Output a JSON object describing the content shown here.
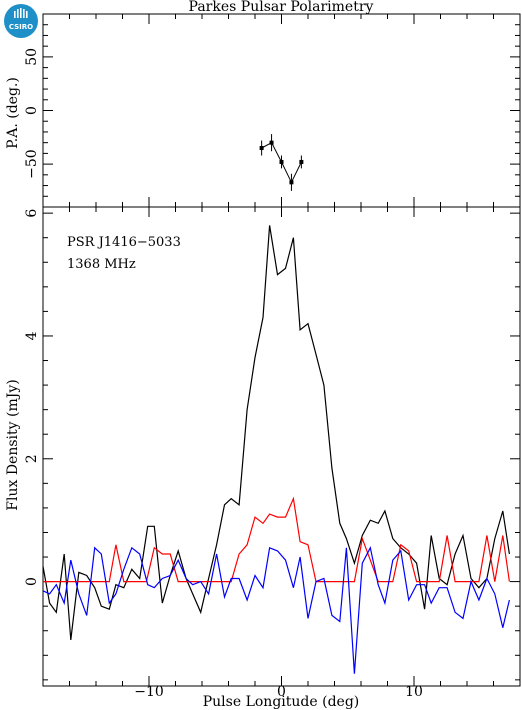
{
  "title": "Parkes Pulsar Polarimetry",
  "logo_text": "CSIRO",
  "colors": {
    "total_intensity": "#000000",
    "linear": "#ff0000",
    "circular": "#0000ff",
    "logo": "#1f8fc8"
  },
  "chart_data": [
    {
      "type": "scatter",
      "panel": "top",
      "title": "Parkes Pulsar Polarimetry",
      "xlabel": "",
      "ylabel": "P.A. (deg.)",
      "xlim": [
        -18,
        18
      ],
      "ylim": [
        -90,
        90
      ],
      "yticks": [
        -50,
        0,
        50
      ],
      "x": [
        -1.5,
        -0.75,
        0.0,
        0.75,
        1.5
      ],
      "y": [
        -35,
        -30,
        -48,
        -67,
        -48
      ],
      "yerr": [
        7,
        8,
        6,
        8,
        6
      ]
    },
    {
      "type": "line",
      "panel": "bottom",
      "xlabel": "Pulse Longitude (deg)",
      "ylabel": "Flux Density (mJy)",
      "xlim": [
        -18,
        18
      ],
      "ylim": [
        -1.7,
        6.1
      ],
      "xticks": [
        -10,
        0,
        10
      ],
      "yticks": [
        0,
        2,
        4,
        6
      ],
      "annotations": [
        "PSR J1416−5033",
        "1368 MHz"
      ],
      "series": [
        {
          "color": "#000000",
          "points": [
            [
              -18,
              0.25
            ],
            [
              -17.5,
              -0.35
            ],
            [
              -17,
              -0.5
            ],
            [
              -16.4,
              0.45
            ],
            [
              -15.9,
              -0.95
            ],
            [
              -15.3,
              0.15
            ],
            [
              -14.7,
              0.1
            ],
            [
              -14.1,
              -0.1
            ],
            [
              -13.6,
              -0.4
            ],
            [
              -13,
              -0.45
            ],
            [
              -12.5,
              -0.05
            ],
            [
              -11.9,
              -0.1
            ],
            [
              -11.3,
              0.2
            ],
            [
              -10.7,
              0.05
            ],
            [
              -10.1,
              0.9
            ],
            [
              -9.6,
              0.9
            ],
            [
              -9,
              -0.35
            ],
            [
              -8.4,
              0.1
            ],
            [
              -7.8,
              0.5
            ],
            [
              -7.2,
              0.05
            ],
            [
              -6.7,
              -0.2
            ],
            [
              -6.1,
              -0.5
            ],
            [
              -5.5,
              0.05
            ],
            [
              -4.9,
              0.6
            ],
            [
              -4.3,
              1.25
            ],
            [
              -3.8,
              1.35
            ],
            [
              -3.2,
              1.25
            ],
            [
              -2.6,
              2.8
            ],
            [
              -2.0,
              3.65
            ],
            [
              -1.4,
              4.3
            ],
            [
              -0.9,
              5.8
            ],
            [
              -0.3,
              5.0
            ],
            [
              0.3,
              5.1
            ],
            [
              0.9,
              5.6
            ],
            [
              1.4,
              4.1
            ],
            [
              2.0,
              4.2
            ],
            [
              2.6,
              3.7
            ],
            [
              3.2,
              3.2
            ],
            [
              3.8,
              1.85
            ],
            [
              4.4,
              0.95
            ],
            [
              4.9,
              0.7
            ],
            [
              5.5,
              0.3
            ],
            [
              6.1,
              0.75
            ],
            [
              6.7,
              1.0
            ],
            [
              7.3,
              0.95
            ],
            [
              7.8,
              1.15
            ],
            [
              8.4,
              0.7
            ],
            [
              9.0,
              0.55
            ],
            [
              9.6,
              0.45
            ],
            [
              10.2,
              0.3
            ],
            [
              10.8,
              -0.45
            ],
            [
              11.3,
              0.75
            ],
            [
              11.9,
              0.05
            ],
            [
              12.5,
              -0.05
            ],
            [
              13.1,
              0.45
            ],
            [
              13.7,
              0.75
            ],
            [
              14.3,
              0.05
            ],
            [
              14.9,
              -0.1
            ],
            [
              15.5,
              0.05
            ],
            [
              16.1,
              0.7
            ],
            [
              16.7,
              1.15
            ],
            [
              17.2,
              0.45
            ]
          ]
        },
        {
          "color": "#ff0000",
          "points": [
            [
              -18,
              0.0
            ],
            [
              -13,
              0.0
            ],
            [
              -12.5,
              0.6
            ],
            [
              -11.9,
              0.0
            ],
            [
              -10.2,
              0.0
            ],
            [
              -9.6,
              0.55
            ],
            [
              -9,
              0.45
            ],
            [
              -8.4,
              0.45
            ],
            [
              -7.8,
              0.0
            ],
            [
              -3.8,
              0.0
            ],
            [
              -3.2,
              0.45
            ],
            [
              -2.6,
              0.6
            ],
            [
              -2.0,
              1.05
            ],
            [
              -1.4,
              0.95
            ],
            [
              -0.9,
              1.1
            ],
            [
              -0.3,
              1.05
            ],
            [
              0.3,
              1.05
            ],
            [
              0.9,
              1.35
            ],
            [
              1.4,
              0.65
            ],
            [
              2.0,
              0.6
            ],
            [
              2.6,
              0.0
            ],
            [
              5.5,
              0.0
            ],
            [
              6.1,
              0.7
            ],
            [
              6.7,
              0.35
            ],
            [
              7.3,
              0.0
            ],
            [
              8.4,
              0.0
            ],
            [
              9.0,
              0.6
            ],
            [
              9.6,
              0.5
            ],
            [
              10.2,
              0.0
            ],
            [
              11.9,
              0.0
            ],
            [
              12.5,
              0.75
            ],
            [
              13.1,
              0.0
            ],
            [
              14.9,
              0.0
            ],
            [
              15.5,
              0.75
            ],
            [
              16.1,
              0.0
            ],
            [
              16.7,
              0.75
            ],
            [
              17.2,
              0.0
            ]
          ]
        },
        {
          "color": "#0000ff",
          "points": [
            [
              -18,
              -0.15
            ],
            [
              -17.5,
              -0.2
            ],
            [
              -17,
              -0.05
            ],
            [
              -16.4,
              -0.35
            ],
            [
              -15.9,
              0.35
            ],
            [
              -15.3,
              -0.2
            ],
            [
              -14.7,
              -0.55
            ],
            [
              -14.1,
              0.55
            ],
            [
              -13.6,
              0.45
            ],
            [
              -13,
              -0.35
            ],
            [
              -12.5,
              -0.2
            ],
            [
              -11.9,
              0.2
            ],
            [
              -11.3,
              0.55
            ],
            [
              -10.7,
              0.45
            ],
            [
              -10.1,
              -0.05
            ],
            [
              -9.6,
              -0.1
            ],
            [
              -9,
              0.05
            ],
            [
              -8.4,
              0.1
            ],
            [
              -7.8,
              0.35
            ],
            [
              -7.2,
              0.05
            ],
            [
              -6.7,
              -0.05
            ],
            [
              -6.1,
              0.0
            ],
            [
              -5.5,
              -0.2
            ],
            [
              -4.9,
              0.45
            ],
            [
              -4.3,
              -0.25
            ],
            [
              -3.8,
              0.05
            ],
            [
              -3.2,
              0.05
            ],
            [
              -2.6,
              -0.3
            ],
            [
              -2.0,
              0.1
            ],
            [
              -1.4,
              -0.1
            ],
            [
              -0.9,
              0.55
            ],
            [
              -0.3,
              0.5
            ],
            [
              0.3,
              0.35
            ],
            [
              0.9,
              -0.1
            ],
            [
              1.4,
              0.4
            ],
            [
              2.0,
              -0.6
            ],
            [
              2.6,
              0.0
            ],
            [
              3.2,
              0.05
            ],
            [
              3.8,
              -0.55
            ],
            [
              4.4,
              -0.65
            ],
            [
              4.9,
              0.55
            ],
            [
              5.5,
              -1.5
            ],
            [
              6.1,
              0.3
            ],
            [
              6.7,
              0.55
            ],
            [
              7.3,
              -0.05
            ],
            [
              7.8,
              -0.35
            ],
            [
              8.4,
              0.35
            ],
            [
              9.0,
              0.5
            ],
            [
              9.6,
              -0.3
            ],
            [
              10.2,
              -0.05
            ],
            [
              10.8,
              -0.05
            ],
            [
              11.3,
              -0.35
            ],
            [
              11.9,
              -0.1
            ],
            [
              12.5,
              -0.1
            ],
            [
              13.1,
              -0.5
            ],
            [
              13.7,
              -0.6
            ],
            [
              14.3,
              0.0
            ],
            [
              14.9,
              -0.3
            ],
            [
              15.5,
              0.05
            ],
            [
              16.1,
              -0.2
            ],
            [
              16.7,
              -0.75
            ],
            [
              17.2,
              -0.3
            ]
          ]
        }
      ]
    }
  ]
}
